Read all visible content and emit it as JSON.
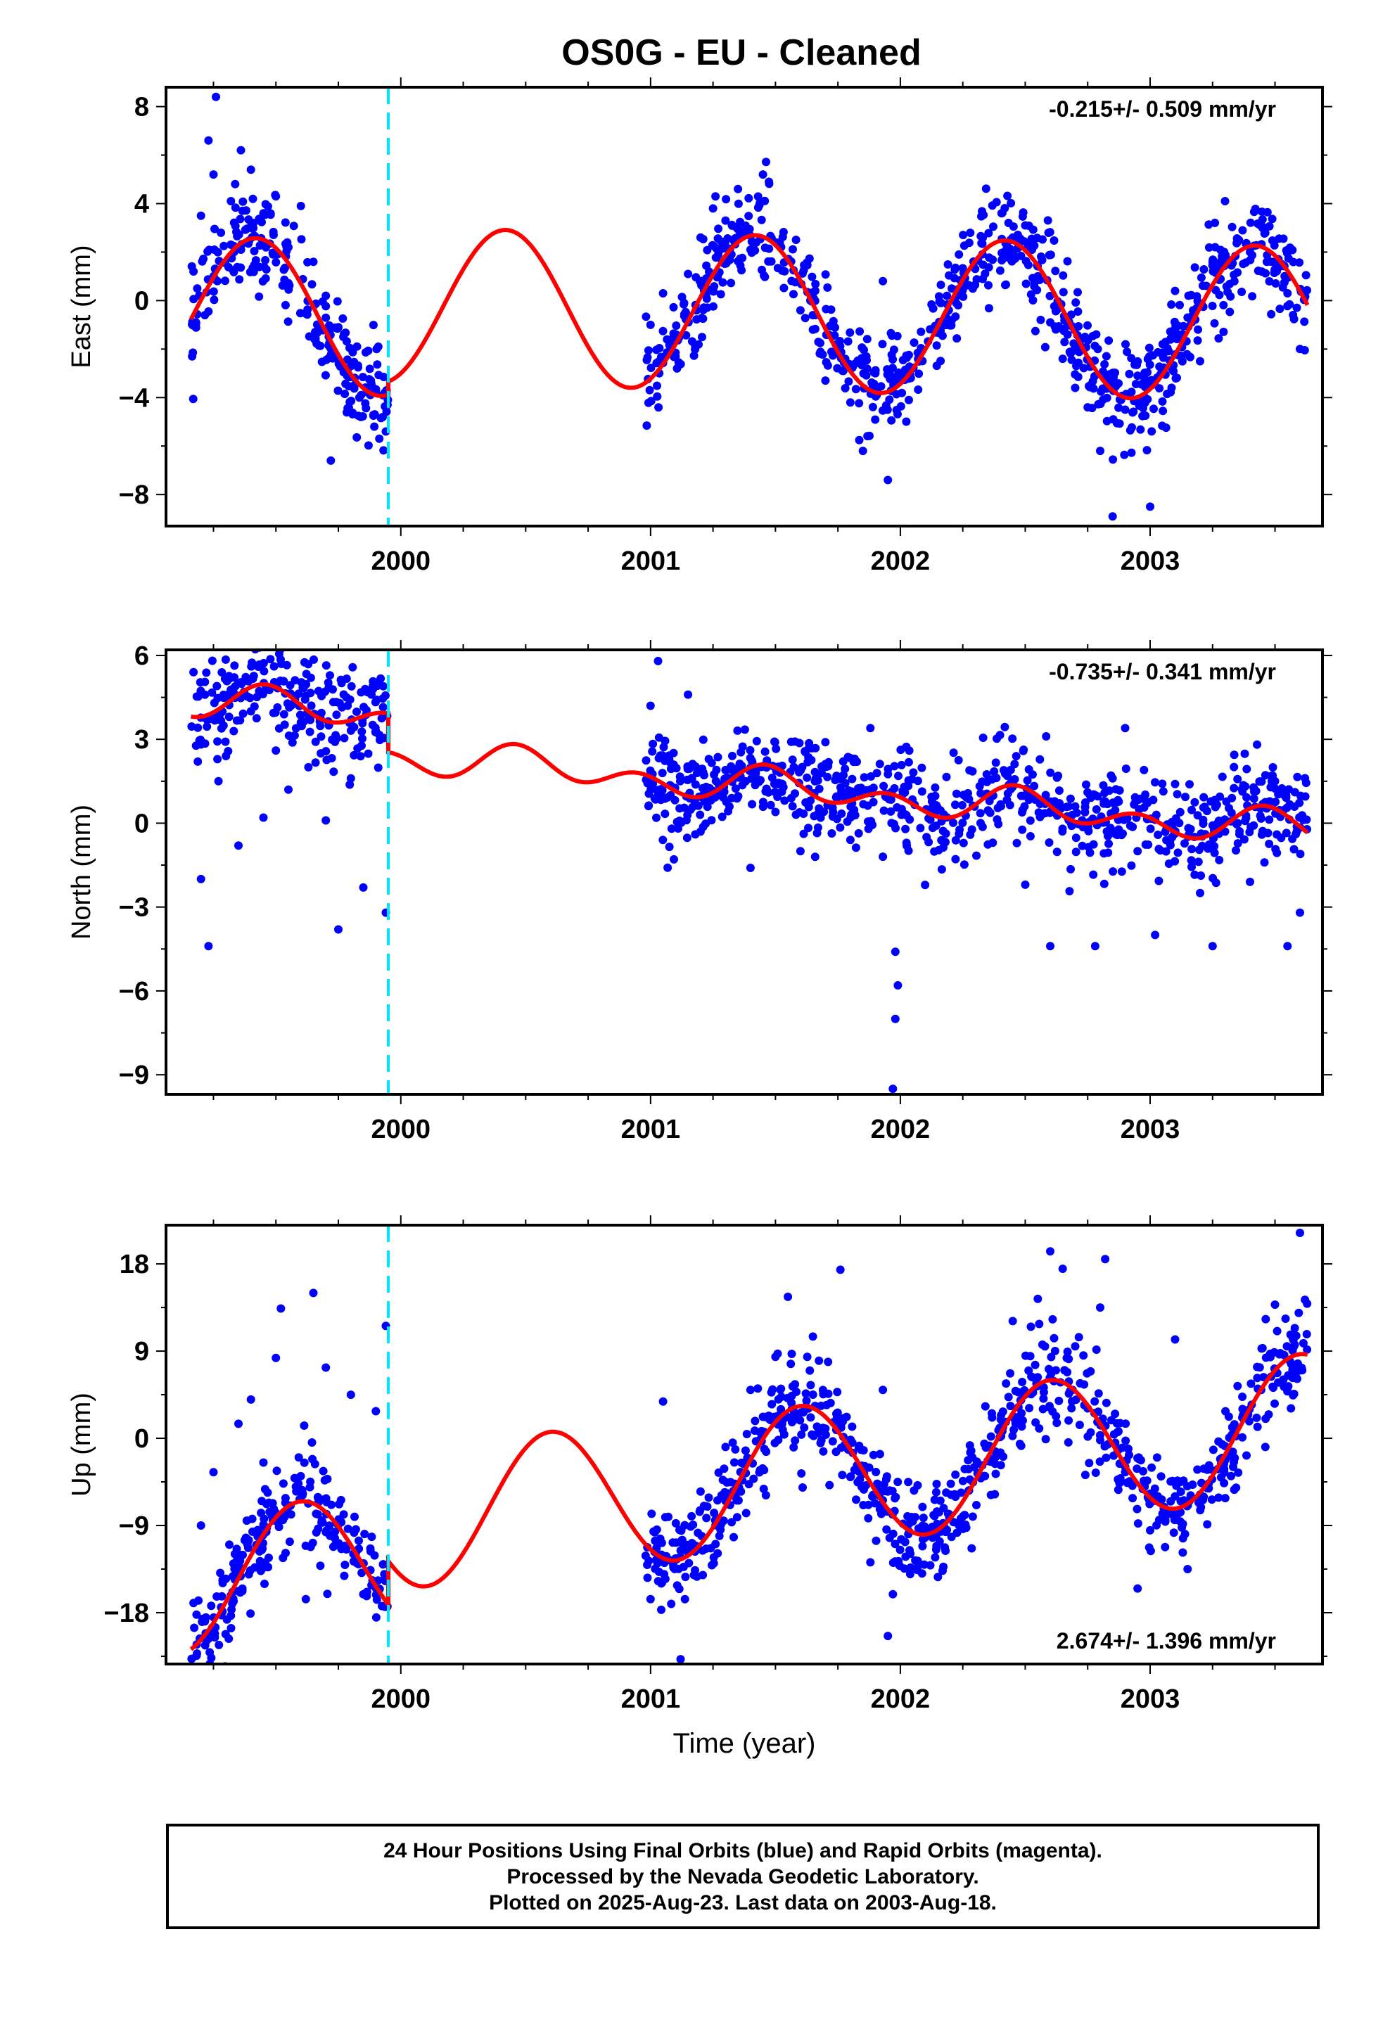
{
  "title": "OS0G  - EU - Cleaned",
  "colors": {
    "data": "#0000ff",
    "model": "#ff0000",
    "offset": "#00e5ff",
    "frame": "#000000"
  },
  "chart_data": [
    {
      "type": "scatter",
      "id": "east",
      "ylabel": "East (mm)",
      "rate": "-0.215+/- 0.509 mm/yr",
      "rate_position": "top-right",
      "ylim": [
        -9.3,
        8.8
      ],
      "yticks": [
        -8,
        -4,
        0,
        4,
        8
      ],
      "xlim": [
        1999.06,
        2003.69
      ],
      "xticks": [
        2000,
        2001,
        2002,
        2003
      ],
      "xticklabels": [
        "2000",
        "2001",
        "2002",
        "2003"
      ],
      "offset_epoch": 1999.95,
      "model": {
        "step": -0.55,
        "trend": -0.215,
        "ref": 2001.4,
        "annual_amp": 3.2,
        "annual_peak": 2001.42,
        "semi_amp": 0.0,
        "semi_peak": 2001.0,
        "bias": -0.1,
        "post_bias": -0.4
      },
      "series": [
        {
          "seg": [
            1999.16,
            1999.95
          ],
          "points": [
            [
              1999.17,
              1.2
            ],
            [
              1999.2,
              3.5
            ],
            [
              1999.23,
              6.6
            ],
            [
              1999.25,
              5.2
            ],
            [
              1999.28,
              2.8
            ],
            [
              1999.32,
              4.1
            ],
            [
              1999.36,
              6.2
            ],
            [
              1999.4,
              5.4
            ],
            [
              1999.45,
              3.6
            ],
            [
              1999.5,
              4.3
            ],
            [
              1999.55,
              2.2
            ],
            [
              1999.6,
              3.9
            ],
            [
              1999.65,
              1.6
            ],
            [
              1999.7,
              0.2
            ],
            [
              1999.75,
              -1.1
            ],
            [
              1999.8,
              -2.7
            ],
            [
              1999.84,
              -4.8
            ],
            [
              1999.88,
              -3.3
            ],
            [
              1999.91,
              -1.9
            ],
            [
              1999.94,
              -5.4
            ],
            [
              1999.72,
              -6.6
            ],
            [
              1999.26,
              8.4
            ],
            [
              1999.18,
              -0.9
            ]
          ]
        },
        {
          "seg": [
            2000.98,
            2003.63
          ],
          "points": [
            [
              2001.0,
              -1.0
            ],
            [
              2001.05,
              0.3
            ],
            [
              2001.1,
              -2.3
            ],
            [
              2001.15,
              1.1
            ],
            [
              2001.2,
              2.6
            ],
            [
              2001.25,
              3.8
            ],
            [
              2001.3,
              3.3
            ],
            [
              2001.35,
              4.6
            ],
            [
              2001.4,
              2.1
            ],
            [
              2001.45,
              5.2
            ],
            [
              2001.5,
              2.4
            ],
            [
              2001.55,
              1.7
            ],
            [
              2001.6,
              -0.4
            ],
            [
              2001.65,
              -1.2
            ],
            [
              2001.7,
              -3.3
            ],
            [
              2001.75,
              -2.1
            ],
            [
              2001.8,
              -4.2
            ],
            [
              2001.85,
              -6.2
            ],
            [
              2001.9,
              -3.0
            ],
            [
              2001.95,
              -7.4
            ],
            [
              2001.93,
              0.8
            ],
            [
              2002.45,
              2.6
            ],
            [
              2002.5,
              3.1
            ],
            [
              2002.55,
              1.0
            ],
            [
              2002.6,
              -0.9
            ],
            [
              2002.65,
              -2.4
            ],
            [
              2002.7,
              -3.6
            ],
            [
              2002.75,
              -4.4
            ],
            [
              2002.8,
              -6.2
            ],
            [
              2002.85,
              -8.9
            ],
            [
              2002.9,
              -4.5
            ],
            [
              2002.95,
              -3.1
            ],
            [
              2003.0,
              -8.5
            ],
            [
              2003.05,
              -1.8
            ],
            [
              2003.1,
              0.4
            ],
            [
              2003.15,
              -0.7
            ],
            [
              2003.2,
              -2.5
            ],
            [
              2003.25,
              1.6
            ],
            [
              2003.3,
              4.1
            ],
            [
              2003.35,
              2.5
            ],
            [
              2003.4,
              2.0
            ],
            [
              2003.45,
              3.0
            ],
            [
              2003.5,
              1.2
            ],
            [
              2003.55,
              0.3
            ],
            [
              2003.6,
              -2.0
            ]
          ]
        }
      ]
    },
    {
      "type": "scatter",
      "id": "north",
      "ylabel": "North (mm)",
      "rate": "-0.735+/- 0.341 mm/yr",
      "rate_position": "top-right",
      "ylim": [
        -9.7,
        6.2
      ],
      "yticks": [
        -9,
        -6,
        -3,
        0,
        3,
        6
      ],
      "xlim": [
        1999.06,
        2003.69
      ],
      "xticks": [
        2000,
        2001,
        2002,
        2003
      ],
      "xticklabels": [
        "2000",
        "2001",
        "2002",
        "2003"
      ],
      "offset_epoch": 1999.95,
      "model": {
        "step": 1.4,
        "trend": -0.735,
        "ref": 2001.4,
        "annual_amp": 0.35,
        "annual_peak": 2001.5,
        "semi_amp": 0.45,
        "semi_peak": 2000.95,
        "bias": 0.35,
        "post_bias": 1.0
      },
      "series": [
        {
          "seg": [
            1999.16,
            1999.95
          ],
          "points": [
            [
              1999.17,
              5.4
            ],
            [
              1999.2,
              -2.0
            ],
            [
              1999.23,
              -4.4
            ],
            [
              1999.27,
              1.5
            ],
            [
              1999.3,
              2.4
            ],
            [
              1999.35,
              -0.8
            ],
            [
              1999.4,
              4.0
            ],
            [
              1999.45,
              0.2
            ],
            [
              1999.5,
              2.6
            ],
            [
              1999.55,
              1.2
            ],
            [
              1999.6,
              3.6
            ],
            [
              1999.64,
              5.2
            ],
            [
              1999.7,
              0.1
            ],
            [
              1999.75,
              -3.8
            ],
            [
              1999.8,
              1.6
            ],
            [
              1999.85,
              -2.3
            ],
            [
              1999.9,
              3.3
            ],
            [
              1999.93,
              4.9
            ],
            [
              1999.94,
              -3.2
            ],
            [
              1999.63,
              2.0
            ]
          ]
        },
        {
          "seg": [
            2000.98,
            2003.63
          ],
          "points": [
            [
              2001.0,
              4.2
            ],
            [
              2001.03,
              5.8
            ],
            [
              2001.08,
              1.0
            ],
            [
              2001.15,
              4.6
            ],
            [
              2001.2,
              -0.3
            ],
            [
              2001.3,
              1.9
            ],
            [
              2001.4,
              -1.6
            ],
            [
              2001.5,
              0.4
            ],
            [
              2001.6,
              -1.0
            ],
            [
              2001.7,
              2.9
            ],
            [
              2001.8,
              -0.6
            ],
            [
              2001.88,
              3.4
            ],
            [
              2001.93,
              -1.2
            ],
            [
              2001.98,
              -4.6
            ],
            [
              2001.98,
              -7.0
            ],
            [
              2001.97,
              -9.5
            ],
            [
              2001.99,
              -5.8
            ],
            [
              2002.45,
              1.3
            ],
            [
              2002.5,
              -2.2
            ],
            [
              2002.6,
              -4.4
            ],
            [
              2002.7,
              0.6
            ],
            [
              2002.78,
              -4.4
            ],
            [
              2002.85,
              1.6
            ],
            [
              2002.9,
              3.4
            ],
            [
              2002.95,
              -1.0
            ],
            [
              2003.02,
              -4.0
            ],
            [
              2003.1,
              1.4
            ],
            [
              2003.2,
              -2.5
            ],
            [
              2003.25,
              -4.4
            ],
            [
              2003.3,
              -0.3
            ],
            [
              2003.4,
              -2.1
            ],
            [
              2003.5,
              1.5
            ],
            [
              2003.55,
              -4.4
            ],
            [
              2003.6,
              -3.2
            ]
          ]
        }
      ]
    },
    {
      "type": "scatter",
      "id": "up",
      "ylabel": "Up (mm)",
      "rate": "2.674+/- 1.396 mm/yr",
      "rate_position": "bottom-right",
      "ylim": [
        -23.3,
        22.0
      ],
      "yticks": [
        -18,
        -9,
        0,
        9,
        18
      ],
      "xlim": [
        1999.06,
        2003.69
      ],
      "xticks": [
        2000,
        2001,
        2002,
        2003
      ],
      "xticklabels": [
        "2000",
        "2001",
        "2002",
        "2003"
      ],
      "xlabel": "Time (year)",
      "offset_epoch": 1999.95,
      "model": {
        "step": -4.5,
        "trend": 2.674,
        "ref": 2001.4,
        "annual_amp": 7.3,
        "annual_peak": 2000.6,
        "semi_amp": 0.0,
        "semi_peak": 2001.0,
        "bias": -3.0,
        "post_bias": -1.5
      },
      "series": [
        {
          "seg": [
            1999.16,
            1999.95
          ],
          "points": [
            [
              1999.17,
              -17.0
            ],
            [
              1999.2,
              -9.0
            ],
            [
              1999.25,
              -3.5
            ],
            [
              1999.3,
              -14.5
            ],
            [
              1999.35,
              1.5
            ],
            [
              1999.4,
              4.0
            ],
            [
              1999.45,
              -2.5
            ],
            [
              1999.5,
              8.3
            ],
            [
              1999.52,
              13.4
            ],
            [
              1999.58,
              -5.0
            ],
            [
              1999.62,
              -16.6
            ],
            [
              1999.65,
              15.0
            ],
            [
              1999.7,
              7.3
            ],
            [
              1999.75,
              -8.9
            ],
            [
              1999.8,
              4.5
            ],
            [
              1999.85,
              -16.1
            ],
            [
              1999.9,
              2.8
            ],
            [
              1999.94,
              11.6
            ],
            [
              1999.93,
              -13.0
            ],
            [
              1999.82,
              -9.4
            ]
          ]
        },
        {
          "seg": [
            2000.98,
            2003.63
          ],
          "points": [
            [
              2001.0,
              -16.6
            ],
            [
              2001.05,
              3.8
            ],
            [
              2001.1,
              -12.4
            ],
            [
              2001.12,
              -22.8
            ],
            [
              2001.2,
              -5.5
            ],
            [
              2001.3,
              -0.9
            ],
            [
              2001.4,
              5.0
            ],
            [
              2001.5,
              8.4
            ],
            [
              2001.55,
              14.6
            ],
            [
              2001.65,
              10.5
            ],
            [
              2001.7,
              1.0
            ],
            [
              2001.76,
              17.4
            ],
            [
              2001.8,
              -4.0
            ],
            [
              2001.88,
              -12.8
            ],
            [
              2001.93,
              5.0
            ],
            [
              2001.95,
              -20.4
            ],
            [
              2001.97,
              -16.1
            ],
            [
              2002.45,
              12.1
            ],
            [
              2002.55,
              6.3
            ],
            [
              2002.6,
              19.3
            ],
            [
              2002.65,
              17.5
            ],
            [
              2002.7,
              9.5
            ],
            [
              2002.8,
              13.5
            ],
            [
              2002.82,
              18.5
            ],
            [
              2002.9,
              -3.5
            ],
            [
              2002.95,
              -15.5
            ],
            [
              2003.0,
              -9.5
            ],
            [
              2003.1,
              10.2
            ],
            [
              2003.15,
              -13.5
            ],
            [
              2003.2,
              -6.0
            ],
            [
              2003.3,
              -0.8
            ],
            [
              2003.35,
              5.4
            ],
            [
              2003.45,
              9.3
            ],
            [
              2003.5,
              13.8
            ],
            [
              2003.6,
              21.2
            ],
            [
              2003.62,
              14.3
            ]
          ]
        }
      ]
    }
  ],
  "footer": {
    "line1": "24 Hour Positions Using Final Orbits (blue) and Rapid Orbits (magenta).",
    "line2": "Processed by the Nevada Geodetic Laboratory.",
    "line3": "Plotted on 2025-Aug-23. Last data on 2003-Aug-18."
  }
}
